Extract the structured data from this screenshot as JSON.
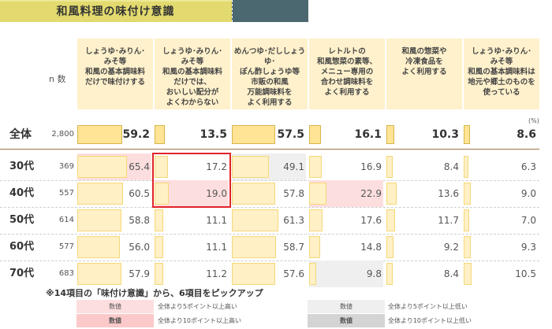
{
  "title": "和風料理の味付け意識",
  "n_label": "n 数",
  "unit": "(%)",
  "columns": [
    {
      "label": "しょうゆ･みりん･\nみそ等\n和風の基本調味料\nだけで味付けする"
    },
    {
      "label": "しょうゆ･みりん･\nみそ等\n和風の基本調味料\nだけでは、\nおいしい配分が\nよくわからない"
    },
    {
      "label": "めんつゆ･だししょうゆ･\nぽん酢しょうゆ等\n市販の和風\n万能調味料を\nよく利用する"
    },
    {
      "label": "レトルトの\n和風惣菜の素等、\nメニュー専用の\n合わせ調味料を\nよく利用する"
    },
    {
      "label": "和風の惣菜や\n冷凍食品を\nよく利用する"
    },
    {
      "label": "しょうゆ･みりん･\nみそ等\n和風の基本調味料は\n地元や郷土のものを\n使っている"
    }
  ],
  "rows": [
    {
      "label": "全体",
      "n": "2,800",
      "values": [
        "59.2",
        "13.5",
        "57.5",
        "16.1",
        "10.3",
        "8.6"
      ]
    },
    {
      "label": "30代",
      "n": "369",
      "values": [
        "65.4",
        "17.2",
        "49.1",
        "16.9",
        "8.4",
        "6.3"
      ]
    },
    {
      "label": "40代",
      "n": "557",
      "values": [
        "60.5",
        "19.0",
        "57.8",
        "22.9",
        "13.6",
        "9.0"
      ]
    },
    {
      "label": "50代",
      "n": "614",
      "values": [
        "58.8",
        "11.1",
        "61.3",
        "17.6",
        "11.7",
        "7.0"
      ]
    },
    {
      "label": "60代",
      "n": "577",
      "values": [
        "56.0",
        "11.1",
        "58.7",
        "14.8",
        "9.2",
        "9.3"
      ]
    },
    {
      "label": "70代",
      "n": "683",
      "values": [
        "57.9",
        "11.2",
        "57.6",
        "9.8",
        "8.4",
        "10.5"
      ]
    }
  ],
  "note": "※14項目の「味付け意識」から、6項目をピックアップ",
  "legend": [
    {
      "swatch": "数値",
      "text": "全体より5ポイント以上高い",
      "color": "#fddede"
    },
    {
      "swatch": "数値",
      "text": "全体より10ポイント以上高い",
      "color": "#fbc9c9"
    },
    {
      "swatch": "数値",
      "text": "全体より5ポイント以上低い",
      "color": "#efefef"
    },
    {
      "swatch": "数値",
      "text": "全体より10ポイント以上低い",
      "color": "#d4d4d4"
    }
  ],
  "chart_data": {
    "type": "table",
    "title": "和風料理の味付け意識",
    "unit": "%",
    "categories": [
      "しょうゆ・みりん・みそ等和風の基本調味料だけで味付けする",
      "しょうゆ・みりん・みそ等和風の基本調味料だけでは、おいしい配分がよくわからない",
      "めんつゆ・だししょうゆ・ぽん酢しょうゆ等市販の和風万能調味料をよく利用する",
      "レトルトの和風惣菜の素等、メニュー専用の合わせ調味料をよく利用する",
      "和風の惣菜や冷凍食品をよく利用する",
      "しょうゆ・みりん・みそ等和風の基本調味料は地元や郷土のものを使っている"
    ],
    "series": [
      {
        "name": "全体",
        "n": 2800,
        "values": [
          59.2,
          13.5,
          57.5,
          16.1,
          10.3,
          8.6
        ]
      },
      {
        "name": "30代",
        "n": 369,
        "values": [
          65.4,
          17.2,
          49.1,
          16.9,
          8.4,
          6.3
        ]
      },
      {
        "name": "40代",
        "n": 557,
        "values": [
          60.5,
          19.0,
          57.8,
          22.9,
          13.6,
          9.0
        ]
      },
      {
        "name": "50代",
        "n": 614,
        "values": [
          58.8,
          11.1,
          61.3,
          17.6,
          11.7,
          7.0
        ]
      },
      {
        "name": "60代",
        "n": 577,
        "values": [
          56.0,
          11.1,
          58.7,
          14.8,
          9.2,
          9.3
        ]
      },
      {
        "name": "70代",
        "n": 683,
        "values": [
          57.9,
          11.2,
          57.6,
          9.8,
          8.4,
          10.5
        ]
      }
    ],
    "highlights": {
      "5pt_higher": [
        [
          "30代",
          0
        ],
        [
          "40代",
          1
        ],
        [
          "40代",
          3
        ]
      ],
      "5pt_lower": [
        [
          "30代",
          2
        ],
        [
          "70代",
          3
        ]
      ]
    },
    "annotation": "※14項目の「味付け意識」から、6項目をピックアップ"
  }
}
